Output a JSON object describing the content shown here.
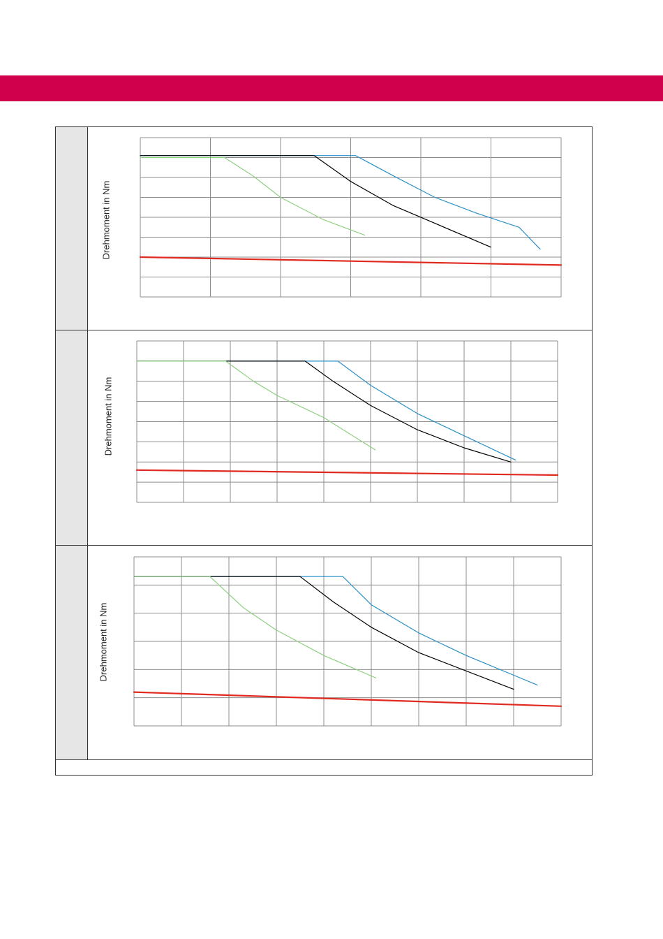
{
  "colors": {
    "header_band": "#d1004d",
    "grid": "#8c8c8c",
    "panel_side": "#e6e6e6",
    "series": [
      "#2a8fc7",
      "#000000",
      "#8fcf80",
      "#e02a20"
    ]
  },
  "chart_data": [
    {
      "type": "line",
      "title": "",
      "ylabel": "Drehmoment in Nm",
      "xlabel": "",
      "xlim": [
        0,
        6
      ],
      "ylim": [
        0,
        8
      ],
      "grid": true,
      "x_gridlines": 6,
      "y_gridlines": 8,
      "series": [
        {
          "color": "#2a8fc7",
          "width": 1.2,
          "points": [
            [
              0,
              7.1
            ],
            [
              3.07,
              7.1
            ],
            [
              3.6,
              6.1
            ],
            [
              4.2,
              5.0
            ],
            [
              4.8,
              4.2
            ],
            [
              5.4,
              3.5
            ],
            [
              5.7,
              2.4
            ]
          ]
        },
        {
          "color": "#000000",
          "width": 1.2,
          "points": [
            [
              0,
              7.1
            ],
            [
              2.48,
              7.1
            ],
            [
              3.0,
              5.8
            ],
            [
              3.6,
              4.6
            ],
            [
              4.2,
              3.7
            ],
            [
              5.0,
              2.5
            ]
          ]
        },
        {
          "color": "#8fcf80",
          "width": 1.2,
          "points": [
            [
              0,
              7.0
            ],
            [
              1.2,
              7.0
            ],
            [
              1.6,
              6.1
            ],
            [
              2.0,
              5.0
            ],
            [
              2.6,
              3.9
            ],
            [
              3.2,
              3.1
            ]
          ]
        },
        {
          "color": "#e02a20",
          "width": 2.2,
          "points": [
            [
              0,
              2.0
            ],
            [
              6,
              1.6
            ]
          ]
        }
      ]
    },
    {
      "type": "line",
      "title": "",
      "ylabel": "Drehmoment in Nm",
      "xlabel": "",
      "xlim": [
        0,
        9
      ],
      "ylim": [
        0,
        8
      ],
      "grid": true,
      "x_gridlines": 9,
      "y_gridlines": 8,
      "series": [
        {
          "color": "#2a8fc7",
          "width": 1.2,
          "points": [
            [
              0,
              7.0
            ],
            [
              4.3,
              7.0
            ],
            [
              5.0,
              5.8
            ],
            [
              6.0,
              4.4
            ],
            [
              7.0,
              3.3
            ],
            [
              8.1,
              2.1
            ]
          ]
        },
        {
          "color": "#000000",
          "width": 1.2,
          "points": [
            [
              0,
              7.0
            ],
            [
              3.6,
              7.0
            ],
            [
              4.2,
              6.0
            ],
            [
              5.0,
              4.8
            ],
            [
              6.0,
              3.6
            ],
            [
              7.0,
              2.7
            ],
            [
              8.0,
              2.0
            ]
          ]
        },
        {
          "color": "#8fcf80",
          "width": 1.2,
          "points": [
            [
              0,
              7.0
            ],
            [
              1.9,
              7.0
            ],
            [
              2.5,
              6.0
            ],
            [
              3.0,
              5.3
            ],
            [
              4.0,
              4.2
            ],
            [
              5.1,
              2.6
            ]
          ]
        },
        {
          "color": "#e02a20",
          "width": 2.2,
          "points": [
            [
              0,
              1.6
            ],
            [
              9,
              1.35
            ]
          ]
        }
      ]
    },
    {
      "type": "line",
      "title": "",
      "ylabel": "Drehmoment in Nm",
      "xlabel": "",
      "xlim": [
        0,
        9
      ],
      "ylim": [
        0,
        6
      ],
      "grid": true,
      "x_gridlines": 9,
      "y_gridlines": 6,
      "series": [
        {
          "color": "#2a8fc7",
          "width": 1.2,
          "points": [
            [
              0,
              5.3
            ],
            [
              4.4,
              5.3
            ],
            [
              5.0,
              4.3
            ],
            [
              6.0,
              3.3
            ],
            [
              7.0,
              2.5
            ],
            [
              8.5,
              1.45
            ]
          ]
        },
        {
          "color": "#000000",
          "width": 1.2,
          "points": [
            [
              0,
              5.3
            ],
            [
              3.5,
              5.3
            ],
            [
              4.2,
              4.4
            ],
            [
              5.0,
              3.5
            ],
            [
              6.0,
              2.6
            ],
            [
              8.0,
              1.3
            ]
          ]
        },
        {
          "color": "#8fcf80",
          "width": 1.2,
          "points": [
            [
              0,
              5.3
            ],
            [
              1.6,
              5.3
            ],
            [
              2.3,
              4.2
            ],
            [
              3.0,
              3.4
            ],
            [
              4.0,
              2.5
            ],
            [
              5.1,
              1.7
            ]
          ]
        },
        {
          "color": "#e02a20",
          "width": 2.2,
          "points": [
            [
              0,
              1.2
            ],
            [
              9,
              0.7
            ]
          ]
        }
      ]
    }
  ]
}
